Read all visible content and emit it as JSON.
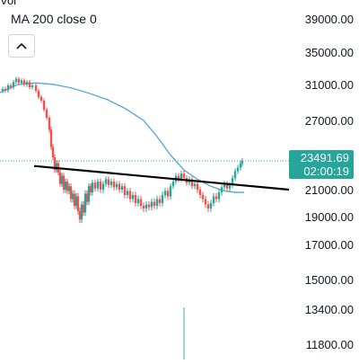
{
  "header": {
    "indicator_top": "Vol",
    "ma_label": "MA 200 close 0",
    "collapse_icon": "chevron-up-icon"
  },
  "colors": {
    "price_line": "#26a69a",
    "ma_line": "#5aabd6",
    "candle_up": "#26a69a",
    "candle_down": "#ef5350",
    "price_tag_bg": "#26a69a",
    "trendline": "#000000",
    "axis_text": "#131722"
  },
  "chart_data": {
    "type": "candlestick",
    "y_axis": {
      "position": "right",
      "ticks": [
        "39000.00",
        "35000.00",
        "31000.00",
        "27000.00",
        "21000.00",
        "19000.00",
        "17000.00",
        "15000.00",
        "13400.00",
        "11800.00"
      ]
    },
    "last_price": {
      "price": "23491.69",
      "countdown": "02:00:19",
      "value": 23491.69
    },
    "price_series": [
      [
        0,
        30300
      ],
      [
        3,
        30500
      ],
      [
        6,
        30350
      ],
      [
        9,
        30900
      ],
      [
        12,
        30700
      ],
      [
        15,
        31300
      ],
      [
        18,
        31700
      ],
      [
        21,
        31200
      ],
      [
        24,
        31500
      ],
      [
        27,
        31000
      ],
      [
        30,
        31300
      ],
      [
        33,
        30700
      ],
      [
        36,
        30900
      ],
      [
        40,
        30300
      ],
      [
        43,
        29600
      ],
      [
        46,
        29200
      ],
      [
        49,
        28200
      ],
      [
        52,
        27300
      ],
      [
        55,
        26200
      ],
      [
        57,
        24700
      ],
      [
        59,
        23800
      ],
      [
        61,
        22700
      ],
      [
        63,
        23300
      ],
      [
        65,
        22500
      ],
      [
        67,
        21500
      ],
      [
        69,
        22200
      ],
      [
        71,
        21000
      ],
      [
        73,
        21700
      ],
      [
        75,
        20900
      ],
      [
        77,
        21300
      ],
      [
        79,
        20300
      ],
      [
        81,
        20700
      ],
      [
        83,
        19800
      ],
      [
        85,
        20500
      ],
      [
        87,
        19400
      ],
      [
        89,
        18800
      ],
      [
        91,
        19900
      ],
      [
        93,
        19300
      ],
      [
        95,
        20700
      ],
      [
        97,
        20100
      ],
      [
        99,
        21300
      ],
      [
        101,
        20800
      ],
      [
        103,
        21600
      ],
      [
        106,
        21100
      ],
      [
        109,
        21700
      ],
      [
        112,
        21000
      ],
      [
        115,
        21500
      ],
      [
        118,
        21900
      ],
      [
        121,
        21400
      ],
      [
        124,
        21700
      ],
      [
        127,
        21200
      ],
      [
        130,
        21500
      ],
      [
        133,
        21000
      ],
      [
        136,
        21300
      ],
      [
        139,
        20600
      ],
      [
        142,
        20900
      ],
      [
        145,
        20300
      ],
      [
        148,
        20600
      ],
      [
        151,
        20000
      ],
      [
        154,
        20300
      ],
      [
        157,
        19800
      ],
      [
        160,
        19600
      ],
      [
        163,
        19900
      ],
      [
        166,
        19700
      ],
      [
        169,
        20100
      ],
      [
        172,
        19800
      ],
      [
        175,
        20300
      ],
      [
        178,
        20000
      ],
      [
        181,
        20600
      ],
      [
        184,
        20900
      ],
      [
        187,
        20500
      ],
      [
        190,
        21300
      ],
      [
        193,
        21700
      ],
      [
        196,
        22200
      ],
      [
        199,
        21900
      ],
      [
        202,
        22400
      ],
      [
        205,
        22000
      ],
      [
        208,
        21600
      ],
      [
        211,
        21900
      ],
      [
        214,
        21300
      ],
      [
        217,
        21500
      ],
      [
        220,
        21000
      ],
      [
        223,
        20600
      ],
      [
        226,
        20300
      ],
      [
        229,
        19900
      ],
      [
        232,
        19600
      ],
      [
        235,
        20000
      ],
      [
        238,
        20500
      ],
      [
        241,
        20300
      ],
      [
        244,
        20800
      ],
      [
        247,
        21200
      ],
      [
        250,
        21500
      ],
      [
        253,
        21100
      ],
      [
        256,
        21400
      ],
      [
        259,
        22000
      ],
      [
        262,
        22600
      ],
      [
        265,
        22900
      ],
      [
        268,
        23300
      ],
      [
        270,
        23491.69
      ]
    ],
    "ma_200": [
      [
        0,
        30100
      ],
      [
        20,
        31000
      ],
      [
        40,
        31200
      ],
      [
        60,
        31000
      ],
      [
        80,
        30600
      ],
      [
        100,
        30000
      ],
      [
        120,
        29300
      ],
      [
        140,
        28300
      ],
      [
        160,
        27000
      ],
      [
        175,
        25600
      ],
      [
        190,
        24000
      ],
      [
        205,
        22700
      ],
      [
        220,
        21900
      ],
      [
        235,
        21300
      ],
      [
        250,
        20900
      ],
      [
        262,
        20800
      ],
      [
        272,
        20800
      ]
    ],
    "volume_spike": {
      "x": 205,
      "value": 1
    },
    "trendline": {
      "start": [
        38,
        23050
      ],
      "end": [
        322,
        21000
      ]
    }
  }
}
